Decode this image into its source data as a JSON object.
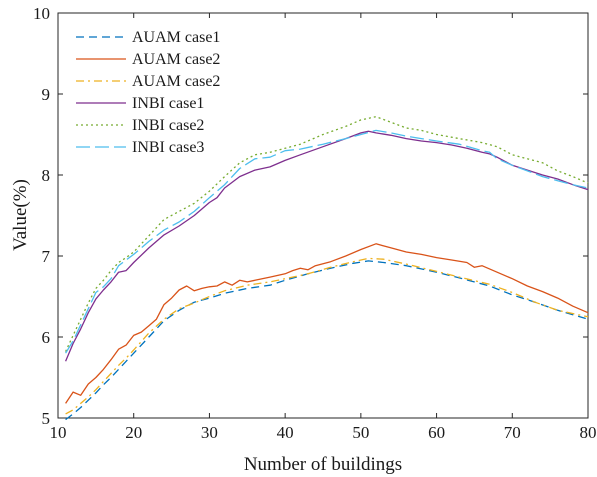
{
  "chart_data": {
    "type": "line",
    "title": "",
    "xlabel": "Number of buildings",
    "ylabel": "Value(%)",
    "xlim": [
      10,
      80
    ],
    "ylim": [
      5,
      10
    ],
    "xticks": [
      "10",
      "20",
      "30",
      "40",
      "50",
      "60",
      "70",
      "80"
    ],
    "yticks": [
      "5",
      "6",
      "7",
      "8",
      "9",
      "10"
    ],
    "grid": false,
    "legend_position": "top-left",
    "series": [
      {
        "name": "AUAM case1",
        "color": "#0072BD",
        "dash": "dashed",
        "x": [
          11,
          12,
          13,
          14,
          15,
          16,
          17,
          18,
          19,
          20,
          22,
          24,
          26,
          28,
          30,
          32,
          35,
          38,
          40,
          43,
          46,
          49,
          51,
          53,
          56,
          60,
          63,
          67,
          70,
          73,
          76,
          80
        ],
        "y": [
          4.98,
          5.05,
          5.13,
          5.22,
          5.31,
          5.41,
          5.5,
          5.6,
          5.7,
          5.8,
          6.0,
          6.2,
          6.33,
          6.43,
          6.48,
          6.54,
          6.6,
          6.64,
          6.7,
          6.78,
          6.85,
          6.91,
          6.94,
          6.92,
          6.88,
          6.8,
          6.73,
          6.63,
          6.52,
          6.43,
          6.33,
          6.22
        ]
      },
      {
        "name": "AUAM case2",
        "color": "#D95319",
        "dash": "solid",
        "x": [
          11,
          12,
          13,
          14,
          15,
          16,
          17,
          18,
          19,
          20,
          21,
          22,
          23,
          24,
          25,
          26,
          27,
          28,
          29,
          30,
          31,
          32,
          33,
          34,
          35,
          36,
          38,
          40,
          41,
          42,
          43,
          44,
          46,
          48,
          50,
          52,
          54,
          56,
          58,
          60,
          62,
          64,
          65,
          66,
          68,
          70,
          72,
          74,
          76,
          78,
          80
        ],
        "y": [
          5.18,
          5.32,
          5.28,
          5.42,
          5.5,
          5.6,
          5.72,
          5.85,
          5.9,
          6.02,
          6.06,
          6.14,
          6.22,
          6.4,
          6.48,
          6.58,
          6.63,
          6.57,
          6.6,
          6.62,
          6.63,
          6.68,
          6.64,
          6.7,
          6.68,
          6.7,
          6.74,
          6.78,
          6.82,
          6.85,
          6.83,
          6.88,
          6.93,
          7.0,
          7.08,
          7.15,
          7.1,
          7.05,
          7.02,
          6.98,
          6.95,
          6.92,
          6.86,
          6.88,
          6.8,
          6.72,
          6.63,
          6.56,
          6.48,
          6.38,
          6.3
        ]
      },
      {
        "name": "AUAM case2",
        "color": "#EDB120",
        "dash": "dashdot",
        "x": [
          11,
          12,
          13,
          14,
          15,
          16,
          17,
          18,
          19,
          20,
          22,
          24,
          26,
          28,
          30,
          32,
          35,
          38,
          40,
          43,
          46,
          49,
          51,
          53,
          56,
          60,
          63,
          67,
          70,
          73,
          76,
          80
        ],
        "y": [
          5.05,
          5.1,
          5.18,
          5.26,
          5.35,
          5.45,
          5.55,
          5.65,
          5.74,
          5.84,
          6.05,
          6.22,
          6.35,
          6.42,
          6.5,
          6.57,
          6.64,
          6.68,
          6.72,
          6.78,
          6.86,
          6.93,
          6.97,
          6.96,
          6.9,
          6.81,
          6.74,
          6.65,
          6.55,
          6.43,
          6.33,
          6.25
        ]
      },
      {
        "name": "INBI case1",
        "color": "#7E2F8E",
        "dash": "solid",
        "x": [
          11,
          12,
          13,
          14,
          15,
          16,
          17,
          18,
          19,
          20,
          22,
          24,
          26,
          28,
          30,
          31,
          32,
          34,
          36,
          38,
          40,
          42,
          45,
          48,
          50,
          51,
          52,
          54,
          56,
          58,
          60,
          62,
          64,
          66,
          67,
          68,
          70,
          72,
          74,
          76,
          78,
          80
        ],
        "y": [
          5.7,
          5.92,
          6.1,
          6.3,
          6.47,
          6.58,
          6.68,
          6.8,
          6.82,
          6.92,
          7.1,
          7.26,
          7.37,
          7.5,
          7.66,
          7.72,
          7.84,
          7.98,
          8.06,
          8.1,
          8.18,
          8.25,
          8.35,
          8.45,
          8.52,
          8.54,
          8.52,
          8.49,
          8.45,
          8.42,
          8.4,
          8.37,
          8.33,
          8.28,
          8.26,
          8.22,
          8.12,
          8.06,
          8.0,
          7.95,
          7.88,
          7.82
        ]
      },
      {
        "name": "INBI case2",
        "color": "#77AC30",
        "dash": "dotted",
        "x": [
          11,
          12,
          13,
          14,
          15,
          16,
          17,
          18,
          19,
          20,
          22,
          24,
          26,
          28,
          30,
          32,
          34,
          36,
          38,
          40,
          42,
          45,
          48,
          50,
          52,
          54,
          56,
          58,
          60,
          63,
          66,
          68,
          70,
          72,
          74,
          76,
          78,
          80
        ],
        "y": [
          5.82,
          6.02,
          6.22,
          6.42,
          6.6,
          6.7,
          6.82,
          6.92,
          6.98,
          7.05,
          7.25,
          7.45,
          7.55,
          7.65,
          7.8,
          7.98,
          8.15,
          8.25,
          8.28,
          8.33,
          8.38,
          8.5,
          8.6,
          8.68,
          8.72,
          8.65,
          8.58,
          8.55,
          8.5,
          8.45,
          8.4,
          8.35,
          8.25,
          8.2,
          8.15,
          8.05,
          7.98,
          7.9
        ]
      },
      {
        "name": "INBI case3",
        "color": "#4DBEEE",
        "dash": "longdash",
        "x": [
          11,
          12,
          13,
          14,
          15,
          16,
          17,
          18,
          19,
          20,
          22,
          24,
          26,
          28,
          30,
          32,
          34,
          36,
          38,
          40,
          42,
          45,
          48,
          50,
          52,
          54,
          56,
          58,
          60,
          63,
          66,
          67,
          68,
          70,
          72,
          74,
          76,
          78,
          80
        ],
        "y": [
          5.8,
          5.95,
          6.15,
          6.35,
          6.55,
          6.62,
          6.72,
          6.88,
          6.95,
          7.02,
          7.18,
          7.32,
          7.42,
          7.55,
          7.72,
          7.88,
          8.08,
          8.2,
          8.22,
          8.3,
          8.32,
          8.38,
          8.45,
          8.5,
          8.55,
          8.52,
          8.48,
          8.45,
          8.42,
          8.38,
          8.3,
          8.28,
          8.2,
          8.12,
          8.05,
          7.98,
          7.93,
          7.88,
          7.84
        ]
      }
    ]
  }
}
